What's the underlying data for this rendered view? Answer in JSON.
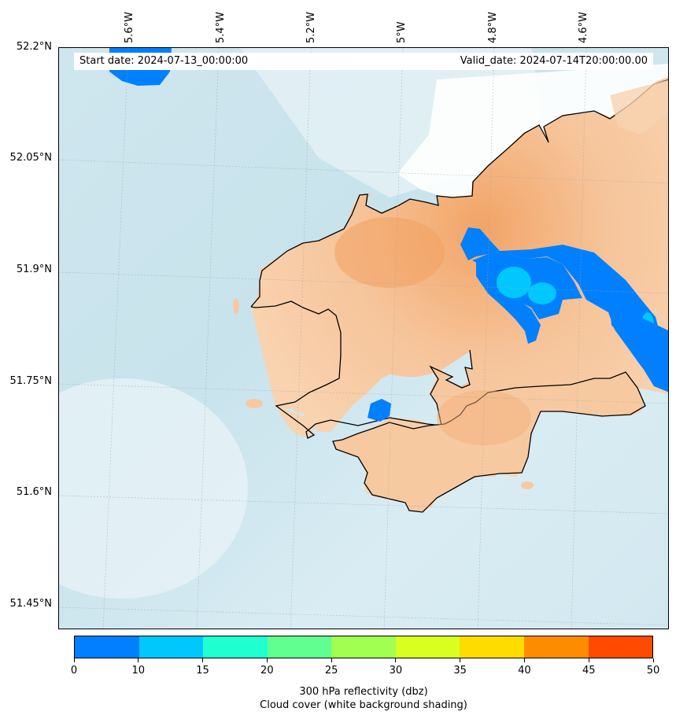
{
  "header": {
    "start_date": "Start date: 2024-07-13_00:00:00",
    "valid_date": "Valid_date: 2024-07-14T20:00:00.00"
  },
  "axes": {
    "longitude_labels": [
      "5.6°W",
      "5.4°W",
      "5.2°W",
      "5°W",
      "4.8°W",
      "4.6°W"
    ],
    "latitude_labels": [
      "52.2°N",
      "52.05°N",
      "51.9°N",
      "51.75°N",
      "51.6°N",
      "51.45°N"
    ]
  },
  "colorbar": {
    "tick_labels": [
      "0",
      "10",
      "15",
      "20",
      "25",
      "30",
      "35",
      "40",
      "45",
      "50"
    ],
    "colors": [
      "#0080ff",
      "#00c8ff",
      "#20ffd0",
      "#60ff90",
      "#a0ff50",
      "#d8ff20",
      "#ffdc00",
      "#ff8c00",
      "#ff4a00"
    ],
    "title_line1": "300 hPa reflectivity (dbz)",
    "title_line2": "Cloud cover (white background shading)"
  },
  "map_colors": {
    "sea": "#d6eaf0",
    "land": "#f7cba3",
    "cloud": "#ffffff",
    "coast": "#000000"
  }
}
